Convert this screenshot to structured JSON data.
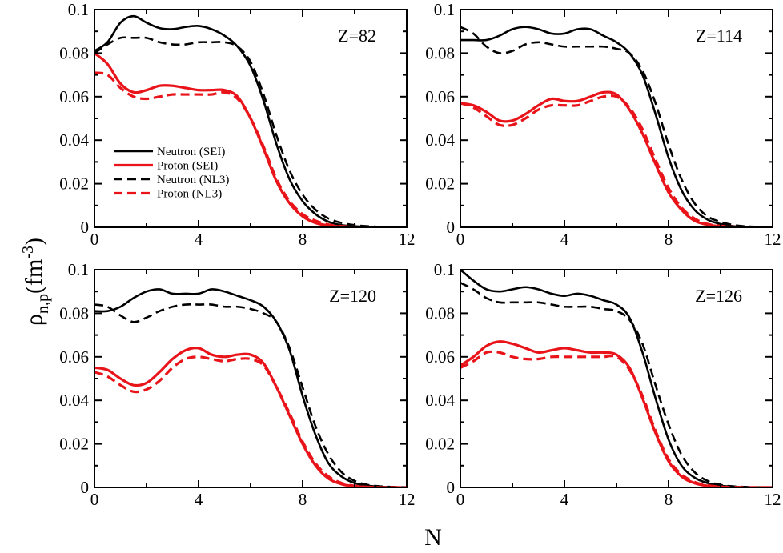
{
  "figure": {
    "xlabel": "N",
    "ylabel_main": "ρ",
    "ylabel_sub": "n,p",
    "ylabel_unit_open": "(fm",
    "ylabel_unit_sup": "-3",
    "ylabel_unit_close": ")"
  },
  "legend": [
    {
      "label": "Neutron (SEI)",
      "color": "#000000",
      "dash": "solid"
    },
    {
      "label": "Proton (SEI)",
      "color": "#e8141a",
      "dash": "solid"
    },
    {
      "label": "Neutron (NL3)",
      "color": "#000000",
      "dash": "dashed"
    },
    {
      "label": "Proton (NL3)",
      "color": "#e8141a",
      "dash": "dashed"
    }
  ],
  "colors": {
    "neutron": "#000000",
    "proton": "#e8141a"
  },
  "chart_data": [
    {
      "type": "line",
      "label": "Z=82",
      "xlim": [
        0,
        12
      ],
      "ylim": [
        0,
        0.1
      ],
      "xticks": [
        "0",
        "4",
        "8",
        "12"
      ],
      "yticks": [
        "0",
        "0.02",
        "0.04",
        "0.06",
        "0.08",
        "0.1"
      ],
      "x": [
        0,
        0.5,
        1,
        1.5,
        2,
        2.5,
        3,
        3.5,
        4,
        4.5,
        5,
        5.5,
        6,
        6.5,
        7,
        7.5,
        8,
        8.5,
        9,
        9.5,
        10,
        10.5,
        11,
        11.5,
        12
      ],
      "series": [
        {
          "name": "Neutron (SEI)",
          "values": [
            0.081,
            0.085,
            0.094,
            0.097,
            0.094,
            0.0915,
            0.091,
            0.092,
            0.0925,
            0.091,
            0.088,
            0.083,
            0.074,
            0.058,
            0.038,
            0.022,
            0.012,
            0.006,
            0.0025,
            0.001,
            0.0005,
            0.0002,
            0.0001,
            0,
            0
          ]
        },
        {
          "name": "Proton (SEI)",
          "values": [
            0.08,
            0.075,
            0.066,
            0.062,
            0.063,
            0.065,
            0.065,
            0.064,
            0.063,
            0.063,
            0.063,
            0.06,
            0.05,
            0.036,
            0.021,
            0.011,
            0.005,
            0.002,
            0.0008,
            0.0003,
            0.0001,
            0,
            0,
            0,
            0
          ]
        },
        {
          "name": "Neutron (NL3)",
          "values": [
            0.08,
            0.084,
            0.087,
            0.087,
            0.087,
            0.085,
            0.084,
            0.084,
            0.085,
            0.085,
            0.085,
            0.083,
            0.076,
            0.061,
            0.042,
            0.026,
            0.015,
            0.008,
            0.004,
            0.002,
            0.001,
            0.0005,
            0.0002,
            0.0001,
            0
          ]
        },
        {
          "name": "Proton (NL3)",
          "values": [
            0.071,
            0.07,
            0.064,
            0.06,
            0.059,
            0.06,
            0.061,
            0.061,
            0.061,
            0.061,
            0.062,
            0.059,
            0.05,
            0.037,
            0.022,
            0.012,
            0.006,
            0.003,
            0.0012,
            0.0005,
            0.0002,
            0.0001,
            0,
            0,
            0
          ]
        }
      ]
    },
    {
      "type": "line",
      "label": "Z=114",
      "xlim": [
        0,
        12
      ],
      "ylim": [
        0,
        0.1
      ],
      "xticks": [
        "0",
        "4",
        "8",
        "12"
      ],
      "yticks": [
        "0",
        "0.02",
        "0.04",
        "0.06",
        "0.08",
        "0.1"
      ],
      "x": [
        0,
        0.5,
        1,
        1.5,
        2,
        2.5,
        3,
        3.5,
        4,
        4.5,
        5,
        5.5,
        6,
        6.5,
        7,
        7.5,
        8,
        8.5,
        9,
        9.5,
        10,
        10.5,
        11,
        11.5,
        12
      ],
      "series": [
        {
          "name": "Neutron (SEI)",
          "values": [
            0.086,
            0.086,
            0.086,
            0.088,
            0.091,
            0.092,
            0.091,
            0.089,
            0.089,
            0.091,
            0.091,
            0.088,
            0.085,
            0.08,
            0.07,
            0.052,
            0.032,
            0.017,
            0.008,
            0.0035,
            0.0015,
            0.0005,
            0.0002,
            0,
            0
          ]
        },
        {
          "name": "Proton (SEI)",
          "values": [
            0.057,
            0.056,
            0.053,
            0.049,
            0.049,
            0.052,
            0.056,
            0.059,
            0.058,
            0.058,
            0.06,
            0.062,
            0.061,
            0.054,
            0.043,
            0.029,
            0.016,
            0.008,
            0.003,
            0.0012,
            0.0004,
            0.0001,
            0,
            0,
            0
          ]
        },
        {
          "name": "Neutron (NL3)",
          "values": [
            0.092,
            0.089,
            0.083,
            0.08,
            0.081,
            0.084,
            0.085,
            0.084,
            0.083,
            0.083,
            0.083,
            0.083,
            0.082,
            0.08,
            0.072,
            0.057,
            0.038,
            0.022,
            0.011,
            0.005,
            0.0025,
            0.001,
            0.0004,
            0.0002,
            0
          ]
        },
        {
          "name": "Proton (NL3)",
          "values": [
            0.057,
            0.055,
            0.051,
            0.047,
            0.047,
            0.05,
            0.054,
            0.056,
            0.056,
            0.056,
            0.058,
            0.06,
            0.06,
            0.055,
            0.045,
            0.031,
            0.018,
            0.009,
            0.004,
            0.0015,
            0.0006,
            0.0002,
            0,
            0,
            0
          ]
        }
      ]
    },
    {
      "type": "line",
      "label": "Z=120",
      "xlim": [
        0,
        12
      ],
      "ylim": [
        0,
        0.1
      ],
      "xticks": [
        "0",
        "4",
        "8",
        "12"
      ],
      "yticks": [
        "0",
        "0.02",
        "0.04",
        "0.06",
        "0.08",
        "0.1"
      ],
      "x": [
        0,
        0.5,
        1,
        1.5,
        2,
        2.5,
        3,
        3.5,
        4,
        4.5,
        5,
        5.5,
        6,
        6.5,
        7,
        7.5,
        8,
        8.5,
        9,
        9.5,
        10,
        10.5,
        11,
        11.5,
        12
      ],
      "series": [
        {
          "name": "Neutron (SEI)",
          "values": [
            0.081,
            0.081,
            0.083,
            0.087,
            0.09,
            0.091,
            0.089,
            0.089,
            0.089,
            0.091,
            0.09,
            0.088,
            0.086,
            0.083,
            0.076,
            0.063,
            0.042,
            0.024,
            0.011,
            0.005,
            0.002,
            0.0008,
            0.0003,
            0.0001,
            0
          ]
        },
        {
          "name": "Proton (SEI)",
          "values": [
            0.055,
            0.054,
            0.05,
            0.047,
            0.048,
            0.053,
            0.059,
            0.063,
            0.064,
            0.061,
            0.06,
            0.061,
            0.061,
            0.057,
            0.046,
            0.033,
            0.02,
            0.01,
            0.004,
            0.0015,
            0.0005,
            0.0002,
            0,
            0,
            0
          ]
        },
        {
          "name": "Neutron (NL3)",
          "values": [
            0.084,
            0.083,
            0.079,
            0.076,
            0.078,
            0.081,
            0.083,
            0.084,
            0.084,
            0.084,
            0.083,
            0.083,
            0.082,
            0.08,
            0.076,
            0.064,
            0.046,
            0.028,
            0.015,
            0.007,
            0.003,
            0.0012,
            0.0005,
            0.0002,
            0
          ]
        },
        {
          "name": "Proton (NL3)",
          "values": [
            0.053,
            0.051,
            0.047,
            0.044,
            0.045,
            0.049,
            0.055,
            0.059,
            0.06,
            0.059,
            0.058,
            0.059,
            0.059,
            0.056,
            0.046,
            0.034,
            0.021,
            0.011,
            0.005,
            0.002,
            0.0007,
            0.0002,
            0,
            0,
            0
          ]
        }
      ]
    },
    {
      "type": "line",
      "label": "Z=126",
      "xlim": [
        0,
        12
      ],
      "ylim": [
        0,
        0.1
      ],
      "xticks": [
        "0",
        "4",
        "8",
        "12"
      ],
      "yticks": [
        "0",
        "0.02",
        "0.04",
        "0.06",
        "0.08",
        "0.1"
      ],
      "x": [
        0,
        0.5,
        1,
        1.5,
        2,
        2.5,
        3,
        3.5,
        4,
        4.5,
        5,
        5.5,
        6,
        6.5,
        7,
        7.5,
        8,
        8.5,
        9,
        9.5,
        10,
        10.5,
        11,
        11.5,
        12
      ],
      "series": [
        {
          "name": "Neutron (SEI)",
          "values": [
            0.1,
            0.095,
            0.091,
            0.09,
            0.091,
            0.092,
            0.091,
            0.089,
            0.088,
            0.089,
            0.088,
            0.086,
            0.084,
            0.078,
            0.062,
            0.041,
            0.022,
            0.01,
            0.0045,
            0.002,
            0.0008,
            0.0003,
            0.0001,
            0,
            0
          ]
        },
        {
          "name": "Proton (SEI)",
          "values": [
            0.056,
            0.06,
            0.065,
            0.067,
            0.066,
            0.064,
            0.062,
            0.063,
            0.064,
            0.063,
            0.062,
            0.062,
            0.061,
            0.055,
            0.041,
            0.025,
            0.012,
            0.005,
            0.002,
            0.0007,
            0.0002,
            0,
            0,
            0,
            0
          ]
        },
        {
          "name": "Neutron (NL3)",
          "values": [
            0.094,
            0.091,
            0.087,
            0.085,
            0.085,
            0.085,
            0.085,
            0.084,
            0.083,
            0.083,
            0.083,
            0.082,
            0.081,
            0.077,
            0.066,
            0.047,
            0.029,
            0.015,
            0.007,
            0.003,
            0.0012,
            0.0005,
            0.0002,
            0,
            0
          ]
        },
        {
          "name": "Proton (NL3)",
          "values": [
            0.055,
            0.058,
            0.062,
            0.062,
            0.06,
            0.059,
            0.059,
            0.06,
            0.06,
            0.06,
            0.06,
            0.06,
            0.06,
            0.054,
            0.042,
            0.026,
            0.013,
            0.006,
            0.0025,
            0.001,
            0.0003,
            0.0001,
            0,
            0,
            0
          ]
        }
      ]
    }
  ]
}
